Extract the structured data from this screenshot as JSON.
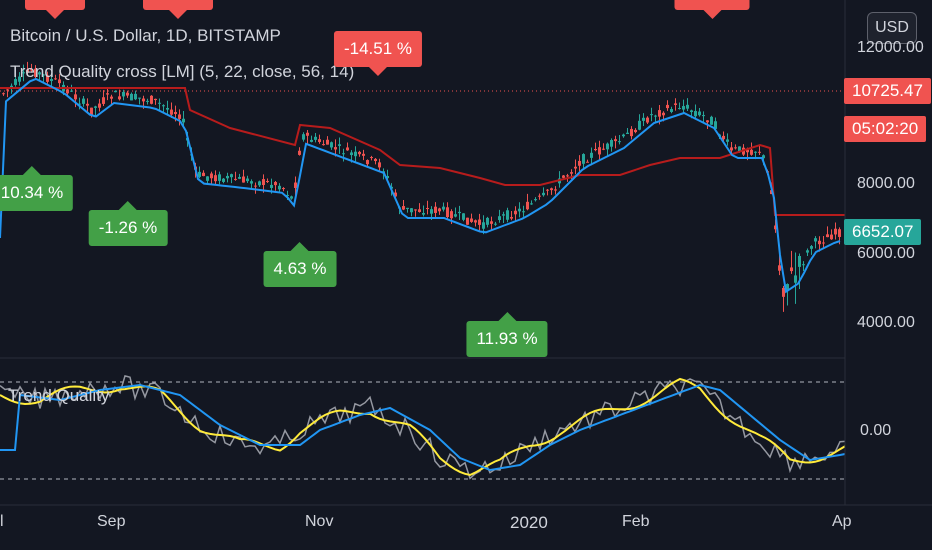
{
  "header": {
    "symbol_title": "Bitcoin / U.S. Dollar, 1D, BITSTAMP",
    "indicator_title": "Trend Quality cross [LM] (5, 22, close, 56, 14)"
  },
  "currency_button": "USD",
  "price_axis": {
    "ticks": [
      "12000.00",
      "8000.00",
      "6000.00",
      "4000.00"
    ],
    "last_price": "6652.07",
    "last_price_color": "#26a69a",
    "high_line_price": "10725.47",
    "countdown": "05:02:20",
    "countdown_color": "#f05350"
  },
  "oscillator": {
    "label": "Trend Quality",
    "tick": "0.00"
  },
  "time_axis": [
    "l",
    "Sep",
    "Nov",
    "2020",
    "Feb",
    "Ap"
  ],
  "signals": [
    {
      "text": "10.34 %",
      "kind": "buy"
    },
    {
      "text": "-1.26 %",
      "kind": "buy"
    },
    {
      "text": "4.63 %",
      "kind": "buy"
    },
    {
      "text": "11.93 %",
      "kind": "buy"
    },
    {
      "text": "-14.51 %",
      "kind": "sell"
    }
  ],
  "colors": {
    "background": "#131722",
    "up_candle": "#26a69a",
    "down_candle": "#ef5350",
    "blue_line": "#2196f3",
    "dark_red_line": "#b71c1c",
    "yellow_line": "#ffeb3b",
    "grey_line": "#9598a1",
    "sell_label": "#f05350",
    "buy_label": "#43a047"
  }
}
